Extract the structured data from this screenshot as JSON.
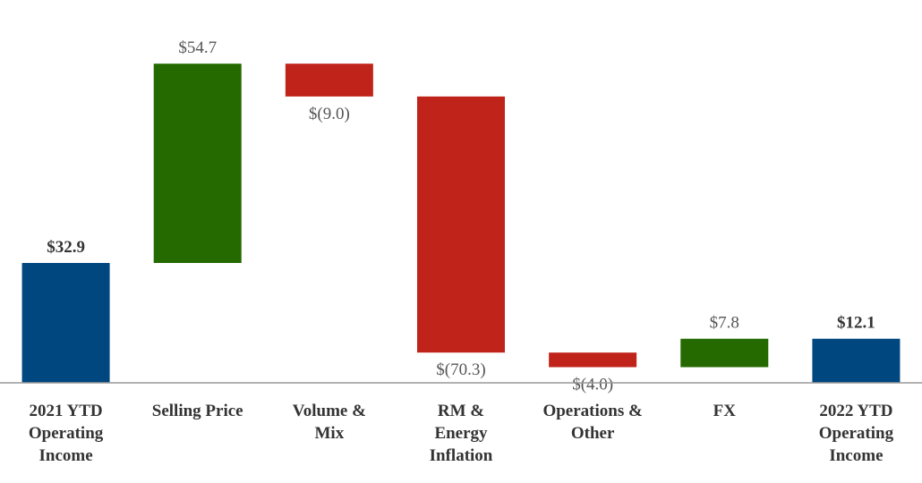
{
  "chart_data": {
    "type": "waterfall",
    "categories": [
      [
        "2021 YTD",
        "Operating",
        "Income"
      ],
      [
        "Selling Price"
      ],
      [
        "Volume &",
        "Mix"
      ],
      [
        "RM &",
        "Energy",
        "Inflation"
      ],
      [
        "Operations &",
        "Other"
      ],
      [
        "FX"
      ],
      [
        "2022 YTD",
        "Operating",
        "Income"
      ]
    ],
    "values": [
      32.9,
      54.7,
      -9.0,
      -70.3,
      -4.0,
      7.8,
      12.1
    ],
    "value_labels": [
      "$32.9",
      "$54.7",
      "$(9.0)",
      "$(70.3)",
      "$(4.0)",
      "$7.8",
      "$12.1"
    ],
    "is_total": [
      true,
      false,
      false,
      false,
      false,
      false,
      true
    ],
    "colors": {
      "total": "#00467f",
      "increase": "#246a00",
      "decrease": "#c0231a"
    },
    "ylim": [
      0,
      100
    ]
  }
}
